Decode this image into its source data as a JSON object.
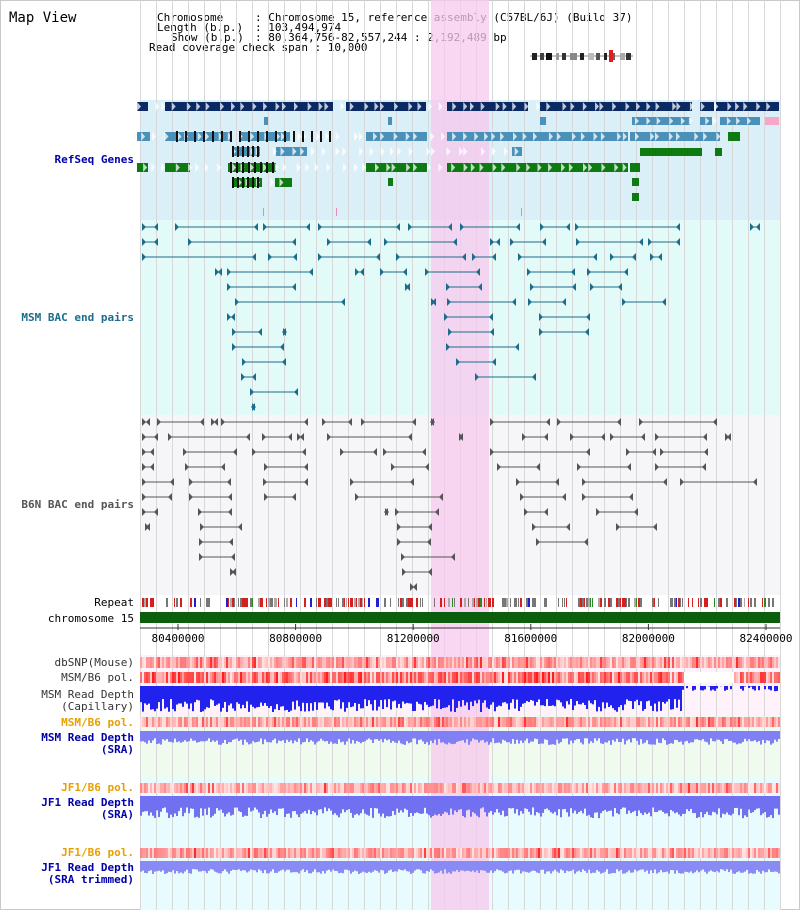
{
  "page_title": "Map View",
  "info": {
    "chromosome_key": "Chromosome",
    "chromosome_val": ": Chromosome 15, reference assembly (C57BL/6J) (Build 37)",
    "length_key": "Length (b.p.)",
    "length_val": ": 103,494,974",
    "show_key": "Show (b.p.)",
    "show_val": ": 80,364,756-82,557,244 : 2,192,489 bp",
    "coverage": "Read coverage check span : 10,000"
  },
  "tracks": {
    "refseq": "RefSeq Genes",
    "msm_bac": "MSM BAC end pairs",
    "b6n_bac": "B6N BAC end pairs",
    "repeat": "Repeat",
    "chromosome": "chromosome 15",
    "dbsnp": "dbSNP(Mouse)",
    "msm_b6_pol": "MSM/B6 pol.",
    "msm_depth_cap_1": "MSM Read Depth",
    "msm_depth_cap_2": "(Capillary)",
    "msm_b6_pol_sra": "MSM/B6 pol.",
    "msm_depth_sra_1": "MSM Read Depth",
    "msm_depth_sra_2": "(SRA)",
    "jf1_b6_pol": "JF1/B6 pol.",
    "jf1_depth_1": "JF1 Read Depth",
    "jf1_depth_2": "(SRA)",
    "jf1_b6_pol_t": "JF1/B6 pol.",
    "jf1_depth_t_1": "JF1 Read Depth",
    "jf1_depth_t_2": "(SRA trimmed)"
  },
  "axis_ticks": [
    "80400000",
    "80800000",
    "81200000",
    "81600000",
    "82000000",
    "82400000"
  ],
  "colors": {
    "gene_navy": "#0b2a63",
    "gene_steel": "#4a90b8",
    "gene_green": "#0d7a12",
    "msm_line": "#1c6c8c",
    "b6n_line": "#555555",
    "highlight": "#f7c8ee",
    "depth_blue": "#3a3aee",
    "label_blue": "#0000aa",
    "label_orange": "#e8a000"
  }
}
